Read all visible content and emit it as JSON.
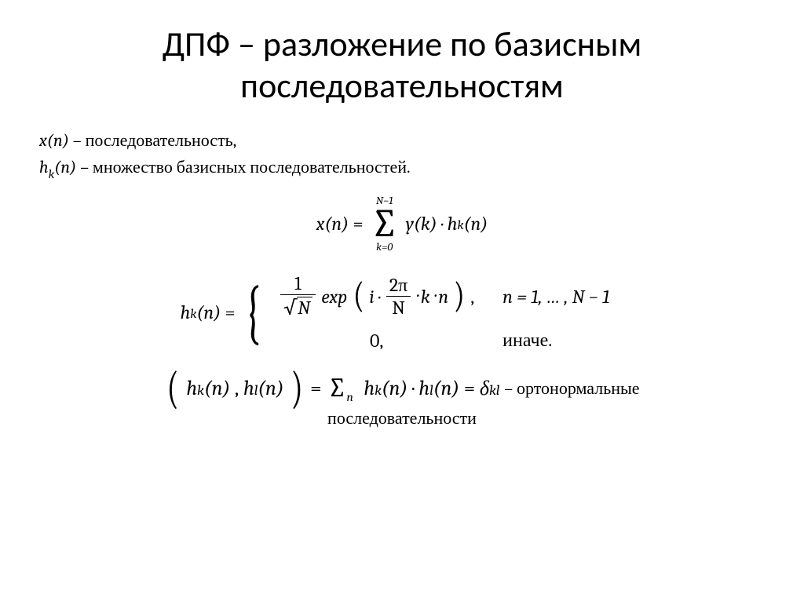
{
  "title_line1": "ДПФ – разложение по базисным",
  "title_line2": "последовательностям",
  "defs": {
    "x_seq_var": "x(n)",
    "x_seq_desc": " – последовательность,",
    "h_seq_var": "h",
    "h_seq_sub": "k",
    "h_seq_arg": "(n)",
    "h_seq_desc": " – множество базисных последовательностей."
  },
  "eq1": {
    "lhs": "x(n)",
    "eq": " = ",
    "sum_top": "N−1",
    "sum_bot": "k=0",
    "rhs_y": "y(k)",
    "cdot": " · ",
    "rhs_h": "h",
    "rhs_h_sub": "k",
    "rhs_h_arg": "(n)"
  },
  "eq2": {
    "lhs_h": "h",
    "lhs_sub": "k",
    "lhs_arg": "(n)",
    "eq": " = ",
    "frac1_num": "1",
    "sqrt_body": "N",
    "exp": "exp",
    "i": "i",
    "cdot": " · ",
    "frac2_num": "2π",
    "frac2_den": "N",
    "kn": " · k · n",
    "comma": ",",
    "cond1": "n = 1, … , N − 1",
    "zero": "0,",
    "cond2": "иначе."
  },
  "eq3": {
    "h1": "h",
    "h1_sub": "k",
    "h1_arg": "(n)",
    "comma": ", ",
    "h2": "h",
    "h2_sub": "l",
    "h2_arg": "(n)",
    "eq": " = ",
    "sum_idx": "n",
    "ha": "h",
    "ha_sub": "k",
    "ha_arg": "(n)",
    "cdot": " · ",
    "hb": "h",
    "hb_sub": "l",
    "hb_arg": "(n)",
    "eq2": " = ",
    "delta": "δ",
    "delta_sub": "kl",
    "trail": "  – ортонормальные",
    "trail2": "последовательности"
  },
  "colors": {
    "text": "#000000",
    "background": "#ffffff"
  }
}
